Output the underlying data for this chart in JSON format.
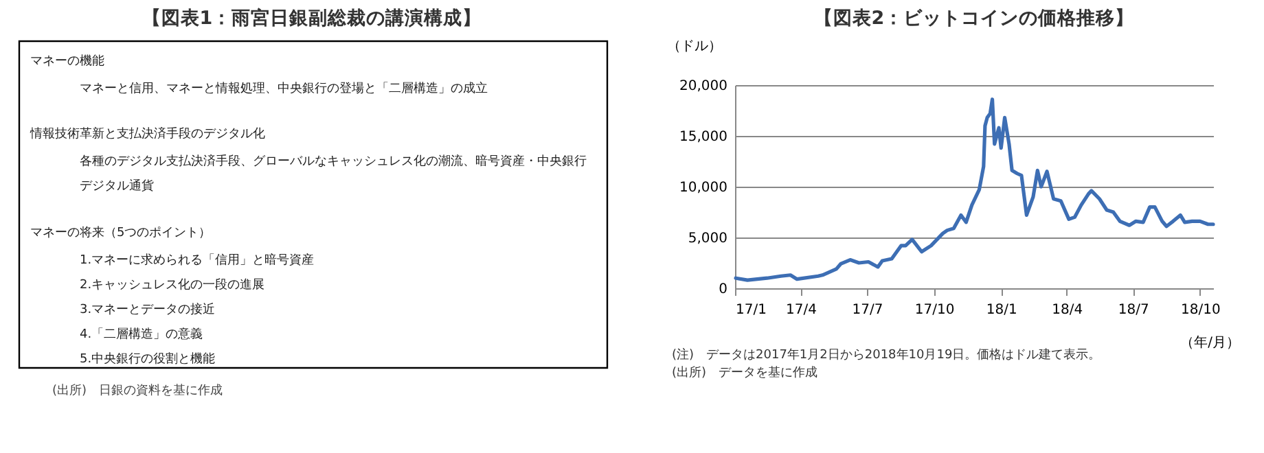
{
  "chart_data": [
    {
      "type": "other",
      "title": "【図表1：雨宮日銀副総裁の講演構成】",
      "annotations": [
        "マネーの機能",
        "マネーと信用、マネーと情報処理、中央銀行の登場と「二層構造」の成立",
        "情報技術革新と支払決済手段のデジタル化",
        "各種のデジタル支払決済手段、グローバルなキャッシュレス化の潮流、暗号資産・中央銀行",
        "デジタル通貨",
        "マネーの将来（5つのポイント）",
        "1.マネーに求められる「信用」と暗号資産",
        "2.キャッシュレス化の一段の進展",
        "3.マネーとデータの接近",
        "4.「二層構造」の意義",
        "5.中央銀行の役割と機能",
        "(出所)　日銀の資料を基に作成"
      ]
    },
    {
      "type": "line",
      "title": "【図表2：ビットコインの価格推移】",
      "ylabel": "（ドル）",
      "xlabel": "（年/月）",
      "x": [
        "2017-01-02",
        "2017-01-18",
        "2017-02-14",
        "2017-03-05",
        "2017-03-18",
        "2017-03-27",
        "2017-04-25",
        "2017-05-01",
        "2017-05-20",
        "2017-05-26",
        "2017-06-08",
        "2017-06-20",
        "2017-07-03",
        "2017-07-16",
        "2017-07-22",
        "2017-08-04",
        "2017-08-17",
        "2017-08-23",
        "2017-09-01",
        "2017-09-14",
        "2017-09-27",
        "2017-10-13",
        "2017-10-19",
        "2017-10-28",
        "2017-11-07",
        "2017-11-14",
        "2017-11-22",
        "2017-12-02",
        "2017-12-08",
        "2017-12-10",
        "2017-12-13",
        "2017-12-17",
        "2017-12-20",
        "2017-12-23",
        "2017-12-29",
        "2018-01-01",
        "2018-01-06",
        "2018-01-12",
        "2018-01-16",
        "2018-01-23",
        "2018-01-29",
        "2018-02-05",
        "2018-02-14",
        "2018-02-20",
        "2018-02-25",
        "2018-03-05",
        "2018-03-14",
        "2018-03-24",
        "2018-04-04",
        "2018-04-12",
        "2018-04-21",
        "2018-05-01",
        "2018-05-05",
        "2018-05-16",
        "2018-05-26",
        "2018-06-04",
        "2018-06-13",
        "2018-06-26",
        "2018-07-05",
        "2018-07-15",
        "2018-07-24",
        "2018-07-31",
        "2018-08-10",
        "2018-08-16",
        "2018-08-25",
        "2018-09-04",
        "2018-09-10",
        "2018-09-20",
        "2018-10-01",
        "2018-10-12",
        "2018-10-19"
      ],
      "series": [
        {
          "color": "#3d6eb4",
          "values": [
            1000,
            800,
            1000,
            1200,
            1300,
            900,
            1200,
            1300,
            1900,
            2400,
            2800,
            2500,
            2600,
            2100,
            2700,
            2900,
            4200,
            4200,
            4800,
            3600,
            4200,
            5400,
            5700,
            5900,
            7200,
            6500,
            8200,
            9700,
            12000,
            16000,
            16800,
            17200,
            18600,
            14200,
            15800,
            13800,
            16800,
            14200,
            11600,
            11300,
            11100,
            7200,
            9000,
            11600,
            10000,
            11500,
            8800,
            8600,
            6800,
            7000,
            8200,
            9300,
            9600,
            8800,
            7700,
            7500,
            6600,
            6200,
            6600,
            6500,
            8000,
            8000,
            6600,
            6100,
            6600,
            7200,
            6500,
            6600,
            6600,
            6300,
            6300
          ]
        }
      ],
      "xlim": [
        "2017-01-01",
        "2018-10-19"
      ],
      "xticks": [
        {
          "value": "2017-01",
          "label": "17/1"
        },
        {
          "value": "2017-04",
          "label": "17/4"
        },
        {
          "value": "2017-07",
          "label": "17/7"
        },
        {
          "value": "2017-10",
          "label": "17/10"
        },
        {
          "value": "2018-01",
          "label": "18/1"
        },
        {
          "value": "2018-04",
          "label": "18/4"
        },
        {
          "value": "2018-07",
          "label": "18/7"
        },
        {
          "value": "2018-10",
          "label": "18/10"
        }
      ],
      "ylim": [
        0,
        20000
      ],
      "yticks": [
        0,
        {
          "value": 5000,
          "label": "5,000"
        },
        {
          "value": 10000,
          "label": "10,000"
        },
        {
          "value": 15000,
          "label": "15,000"
        },
        {
          "value": 20000,
          "label": "20,000"
        }
      ],
      "grid": "y",
      "line_style": "solid",
      "marker": "none",
      "annotations": [
        "(注)　データは2017年1月2日から2018年10月19日。価格はドル建て表示。",
        "(出所)　データを基に作成"
      ]
    }
  ]
}
